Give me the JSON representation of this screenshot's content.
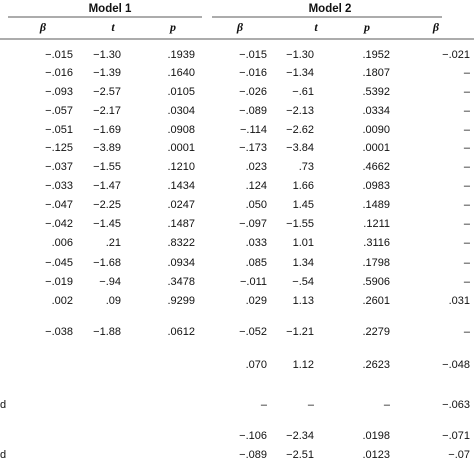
{
  "table": {
    "groups": [
      "Model 1",
      "Model 2"
    ],
    "columns": [
      "β",
      "t",
      "p",
      "β",
      "t",
      "p",
      "β"
    ],
    "rows": [
      {
        "label": null,
        "cells": [
          "−.015",
          "−1.30",
          ".1939",
          "−.015",
          "−1.30",
          ".1952",
          "−.021"
        ]
      },
      {
        "label": null,
        "cells": [
          "−.016",
          "−1.39",
          ".1640",
          "−.016",
          "−1.34",
          ".1807",
          "–"
        ]
      },
      {
        "label": null,
        "cells": [
          "−.093",
          "−2.57",
          ".0105",
          "−.026",
          "−.61",
          ".5392",
          "–"
        ]
      },
      {
        "label": null,
        "cells": [
          "−.057",
          "−2.17",
          ".0304",
          "−.089",
          "−2.13",
          ".0334",
          "–"
        ]
      },
      {
        "label": null,
        "cells": [
          "−.051",
          "−1.69",
          ".0908",
          "−.114",
          "−2.62",
          ".0090",
          "–"
        ]
      },
      {
        "label": null,
        "cells": [
          "−.125",
          "−3.89",
          ".0001",
          "−.173",
          "−3.84",
          ".0001",
          "–"
        ]
      },
      {
        "label": null,
        "cells": [
          "−.037",
          "−1.55",
          ".1210",
          ".023",
          ".73",
          ".4662",
          "–"
        ]
      },
      {
        "label": null,
        "cells": [
          "−.033",
          "−1.47",
          ".1434",
          ".124",
          "1.66",
          ".0983",
          "–"
        ]
      },
      {
        "label": null,
        "cells": [
          "−.047",
          "−2.25",
          ".0247",
          ".050",
          "1.45",
          ".1489",
          "–"
        ]
      },
      {
        "label": null,
        "cells": [
          "−.042",
          "−1.45",
          ".1487",
          "−.097",
          "−1.55",
          ".1211",
          "–"
        ]
      },
      {
        "label": null,
        "cells": [
          ".006",
          ".21",
          ".8322",
          ".033",
          "1.01",
          ".3116",
          "–"
        ]
      },
      {
        "label": null,
        "cells": [
          "−.045",
          "−1.68",
          ".0934",
          ".085",
          "1.34",
          ".1798",
          "–"
        ]
      },
      {
        "label": null,
        "cells": [
          "−.019",
          "−.94",
          ".3478",
          "−.011",
          "−.54",
          ".5906",
          "–"
        ]
      },
      {
        "label": null,
        "cells": [
          ".002",
          ".09",
          ".9299",
          ".029",
          "1.13",
          ".2601",
          ".031"
        ]
      },
      {
        "label": null,
        "cells": [
          "−.038",
          "−1.88",
          ".0612",
          "−.052",
          "−1.21",
          ".2279",
          "–"
        ]
      },
      {
        "label": null,
        "cells": [
          null,
          null,
          null,
          ".070",
          "1.12",
          ".2623",
          "−.048"
        ]
      },
      {
        "label": "d",
        "cells": [
          null,
          null,
          null,
          "–",
          "–",
          "–",
          "−.063"
        ]
      },
      {
        "label": null,
        "cells": [
          null,
          null,
          null,
          "−.106",
          "−2.34",
          ".0198",
          "−.071"
        ]
      },
      {
        "label": "d",
        "cells": [
          null,
          null,
          null,
          "−.089",
          "−2.51",
          ".0123",
          "−.07"
        ]
      }
    ]
  }
}
